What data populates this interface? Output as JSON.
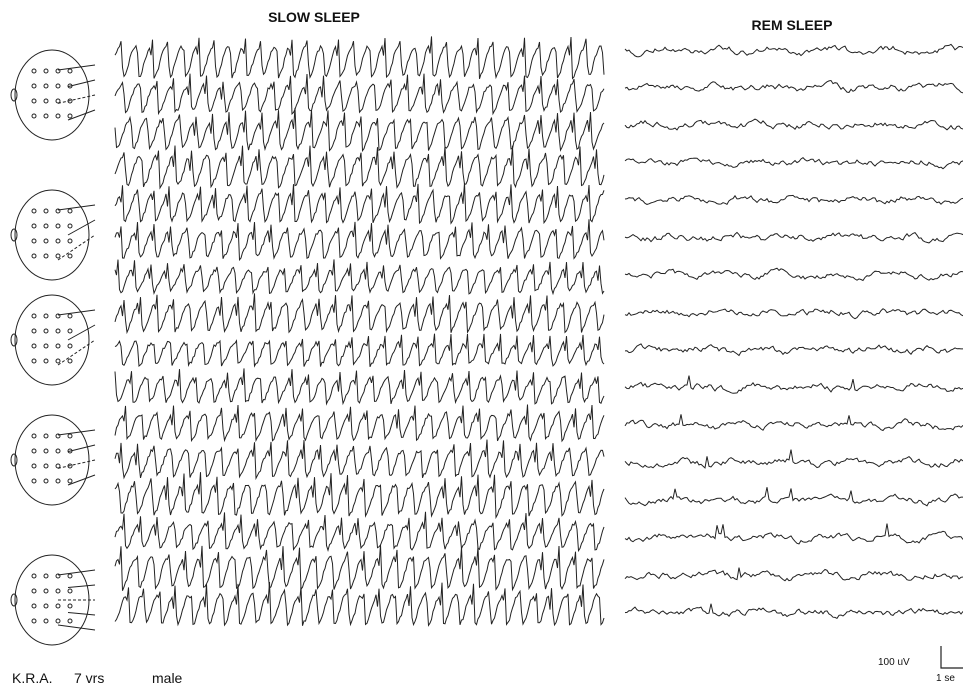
{
  "panels": {
    "slow": {
      "title": "SLOW SLEEP"
    },
    "rem": {
      "title": "REM SLEEP"
    }
  },
  "subject": {
    "id": "K.R.A.",
    "age": "7 vrs",
    "sex": "male"
  },
  "scale": {
    "amplitude": "100 uV",
    "time": "1 se"
  }
}
